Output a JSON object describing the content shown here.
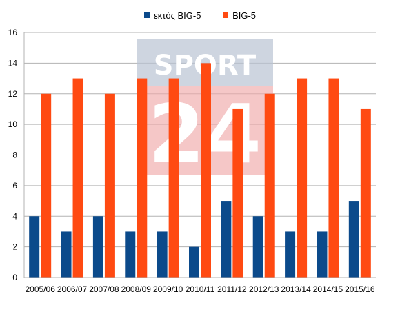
{
  "chart_data": {
    "type": "bar",
    "categories": [
      "2005/06",
      "2006/07",
      "2007/08",
      "2008/09",
      "2009/10",
      "2010/11",
      "2011/12",
      "2012/13",
      "2013/14",
      "2014/15",
      "2015/16"
    ],
    "series": [
      {
        "name": "εκτός BIG-5",
        "color": "#0b4a8b",
        "values": [
          4,
          3,
          4,
          3,
          3,
          2,
          5,
          4,
          3,
          3,
          5
        ]
      },
      {
        "name": "BIG-5",
        "color": "#ff4a12",
        "values": [
          12,
          13,
          12,
          13,
          13,
          14,
          11,
          12,
          13,
          13,
          11
        ]
      }
    ],
    "ylim": [
      0,
      16
    ],
    "yticks": [
      0,
      2,
      4,
      6,
      8,
      10,
      12,
      14,
      16
    ],
    "grid": true,
    "legend_position": "top-center"
  },
  "watermark": {
    "line1": "SPORT",
    "line2": "24",
    "top_color": "#b9c3d3",
    "bottom_color": "#f0a9a9"
  }
}
